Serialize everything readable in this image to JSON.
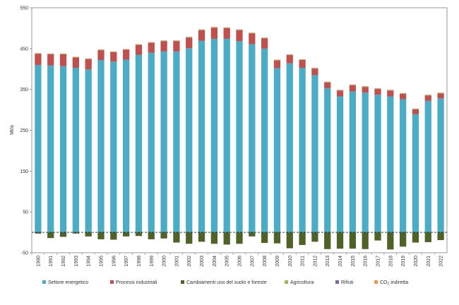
{
  "chart_data": {
    "type": "bar",
    "stacked": true,
    "ylabel": "Mt/a",
    "ylim": [
      -50,
      550
    ],
    "yticks": [
      -50,
      50,
      150,
      250,
      350,
      450,
      550
    ],
    "grid": false,
    "legend_position": "bottom",
    "categories": [
      "1990",
      "1991",
      "1992",
      "1993",
      "1994",
      "1995",
      "1996",
      "1997",
      "1998",
      "1999",
      "2000",
      "2001",
      "2002",
      "2003",
      "2004",
      "2005",
      "2006",
      "2007",
      "2008",
      "2009",
      "2010",
      "2011",
      "2012",
      "2013",
      "2014",
      "2015",
      "2016",
      "2017",
      "2018",
      "2019",
      "2020",
      "2021",
      "2022"
    ],
    "series": [
      {
        "name": "Settore energetico",
        "color": "#4bacc6",
        "values": [
          410,
          409,
          407,
          403,
          399,
          422,
          418,
          423,
          435,
          440,
          443,
          443,
          451,
          469,
          474,
          474,
          468,
          461,
          450,
          402,
          414,
          403,
          385,
          353,
          333,
          345,
          342,
          337,
          333,
          326,
          289,
          322,
          328
        ]
      },
      {
        "name": "Processi industriali",
        "color": "#c0504d",
        "values": [
          27,
          27,
          29,
          25,
          25,
          24,
          23,
          24,
          24,
          24,
          25,
          25,
          26,
          26,
          27,
          26,
          27,
          26,
          25,
          19,
          20,
          19,
          16,
          14,
          14,
          15,
          14,
          14,
          14,
          13,
          12,
          13,
          12
        ]
      },
      {
        "name": "Cambiamenti uso del suolo e foreste",
        "color": "#4f6228",
        "values": [
          -3,
          -14,
          -11,
          -3,
          -10,
          -17,
          -18,
          -10,
          -9,
          -17,
          -15,
          -25,
          -28,
          -23,
          -28,
          -30,
          -28,
          -10,
          -26,
          -27,
          -39,
          -31,
          -23,
          -41,
          -40,
          -40,
          -41,
          -20,
          -42,
          -35,
          -25,
          -24,
          -19
        ]
      },
      {
        "name": "Agricoltura",
        "color": "#9bbb59",
        "values": [
          1,
          1,
          1,
          1,
          1,
          1,
          1,
          1,
          1,
          1,
          1,
          1,
          1,
          1,
          1,
          1,
          1,
          1,
          1,
          1,
          1,
          1,
          1,
          1,
          1,
          1,
          1,
          1,
          1,
          1,
          1,
          1,
          1
        ]
      },
      {
        "name": "Rifiuti",
        "color": "#8064a2",
        "values": [
          0.4,
          0.4,
          0.4,
          0.4,
          0.4,
          0.4,
          0.4,
          0.4,
          0.4,
          0.4,
          0.4,
          0.4,
          0.4,
          0.4,
          0.4,
          0.4,
          0.4,
          0.4,
          0.4,
          0.4,
          0.4,
          0.4,
          0.4,
          0.4,
          0.4,
          0.4,
          0.4,
          0.4,
          0.4,
          0.4,
          0.4,
          0.4,
          0.4
        ]
      },
      {
        "name": "CO",
        "name_sub": "2",
        "name_rest": " indiretta",
        "color": "#f79646",
        "values": [
          0.6,
          0.6,
          0.6,
          0.6,
          0.6,
          0.6,
          0.6,
          0.6,
          0.6,
          0.6,
          0.6,
          0.6,
          0.6,
          0.6,
          0.6,
          0.6,
          0.6,
          0.6,
          0.6,
          0.6,
          0.6,
          0.6,
          0.6,
          0.6,
          0.6,
          0.6,
          0.6,
          0.6,
          0.6,
          0.6,
          0.6,
          0.6,
          0.6
        ]
      }
    ]
  }
}
